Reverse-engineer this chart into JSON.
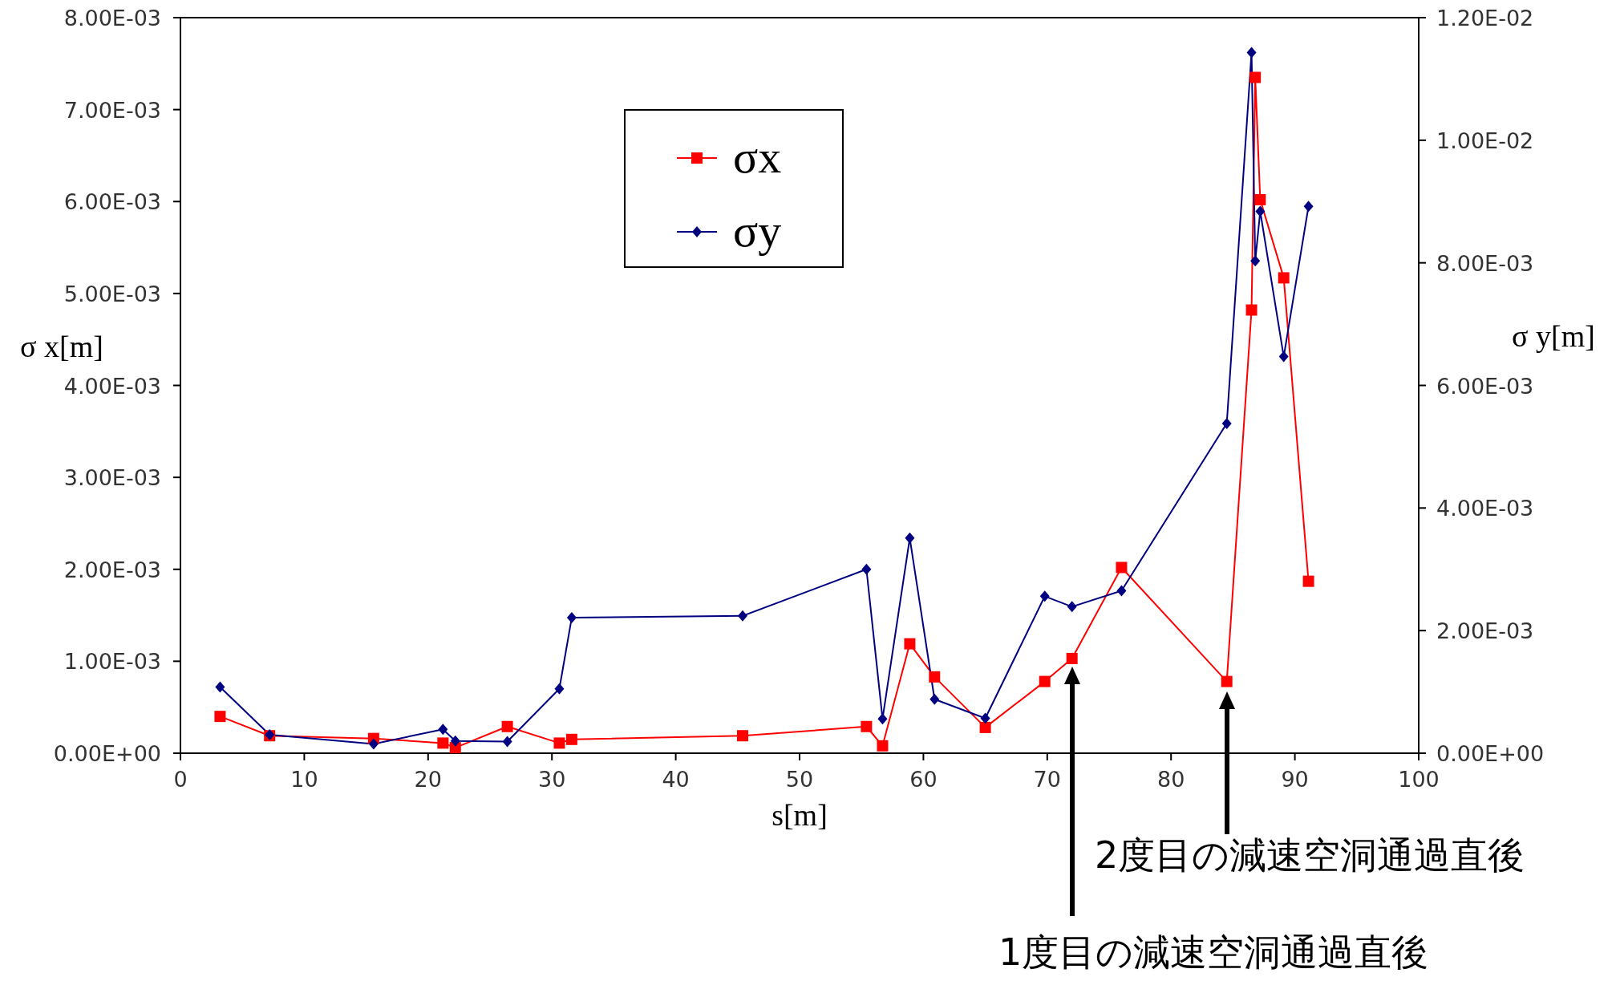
{
  "chart_data": {
    "type": "line",
    "xlabel": "s[m]",
    "ylabel": "σ x[m]",
    "y2label": "σ y[m]",
    "x": [
      3.2,
      7.2,
      15.6,
      21.2,
      22.2,
      26.4,
      30.6,
      31.6,
      45.4,
      55.4,
      56.7,
      58.9,
      60.9,
      65.0,
      69.8,
      72.0,
      76.0,
      84.5,
      86.5,
      86.8,
      87.2,
      89.1,
      91.1
    ],
    "series": [
      {
        "name": "σx",
        "color": "#ff0000",
        "marker": "square",
        "values": [
          0.0004,
          0.00019,
          0.00016,
          0.00011,
          6e-05,
          0.00029,
          0.00011,
          0.00015,
          0.00019,
          0.00029,
          8e-05,
          0.00119,
          0.00083,
          0.00028,
          0.00078,
          0.00103,
          0.00202,
          0.00078,
          0.00482,
          0.00735,
          0.00602,
          0.00517,
          0.00187
        ]
      },
      {
        "name": "σy",
        "color": "#000080",
        "marker": "diamond",
        "axis": "y2",
        "values": [
          0.00108,
          0.0003,
          0.00015,
          0.00039,
          0.0002,
          0.00019,
          0.00105,
          0.00221,
          0.00224,
          0.003,
          0.00056,
          0.00351,
          0.00088,
          0.00057,
          0.00256,
          0.00239,
          0.00265,
          0.00538,
          0.01143,
          0.00803,
          0.00884,
          0.00647,
          0.00892
        ]
      }
    ],
    "xlim": [
      0,
      100
    ],
    "xticks": [
      0,
      10,
      20,
      30,
      40,
      50,
      60,
      70,
      80,
      90,
      100
    ],
    "ylim": [
      0,
      0.008
    ],
    "yticks": [
      {
        "value": 0,
        "label": "0.00E+00"
      },
      {
        "value": 0.001,
        "label": "1.00E-03"
      },
      {
        "value": 0.002,
        "label": "2.00E-03"
      },
      {
        "value": 0.003,
        "label": "3.00E-03"
      },
      {
        "value": 0.004,
        "label": "4.00E-03"
      },
      {
        "value": 0.005,
        "label": "5.00E-03"
      },
      {
        "value": 0.006,
        "label": "6.00E-03"
      },
      {
        "value": 0.007,
        "label": "7.00E-03"
      },
      {
        "value": 0.008,
        "label": "8.00E-03"
      }
    ],
    "y2lim": [
      0,
      0.012
    ],
    "y2ticks": [
      {
        "value": 0,
        "label": "0.00E+00"
      },
      {
        "value": 0.002,
        "label": "2.00E-03"
      },
      {
        "value": 0.004,
        "label": "4.00E-03"
      },
      {
        "value": 0.006,
        "label": "6.00E-03"
      },
      {
        "value": 0.008,
        "label": "8.00E-03"
      },
      {
        "value": 0.01,
        "label": "1.00E-02"
      },
      {
        "value": 0.012,
        "label": "1.20E-02"
      }
    ],
    "annotations": [
      "1度目の減速空洞通過直後",
      "2度目の減速空洞通過直後"
    ],
    "legend": "top",
    "grid": false,
    "line_style": "solid"
  }
}
